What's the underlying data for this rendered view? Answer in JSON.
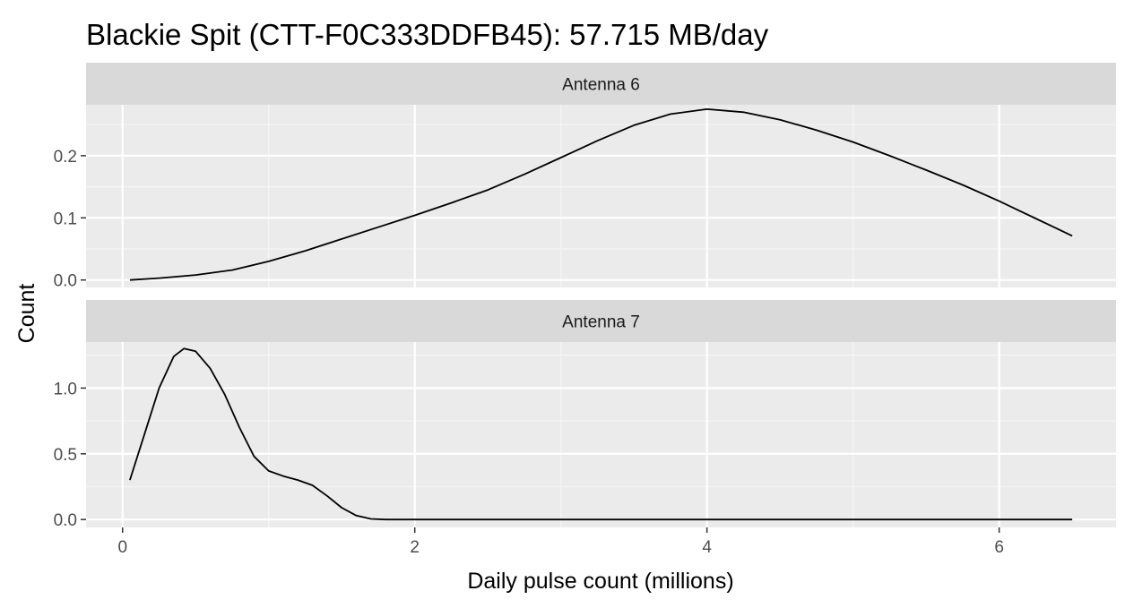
{
  "chart_data": {
    "type": "line",
    "title": "Blackie Spit (CTT-F0C333DDFB45): 57.715 MB/day",
    "xlabel": "Daily pulse count (millions)",
    "ylabel": "Count",
    "xlim": [
      -0.25,
      6.8
    ],
    "x_ticks": [
      0,
      2,
      4,
      6
    ],
    "x_tick_labels": [
      "0",
      "2",
      "4",
      "6"
    ],
    "grid": true,
    "panel_background": "#ebebeb",
    "strip_background": "#d9d9d9",
    "line_color": "#000000",
    "facets": [
      {
        "strip_label": "Antenna 6",
        "ylim": [
          -0.012,
          0.282
        ],
        "y_ticks": [
          0.0,
          0.1,
          0.2
        ],
        "y_tick_labels": [
          "0.0",
          "0.1",
          "0.2"
        ],
        "series": [
          {
            "x": [
              0.05,
              0.25,
              0.5,
              0.75,
              1.0,
              1.25,
              1.5,
              1.75,
              2.0,
              2.25,
              2.5,
              2.75,
              3.0,
              3.25,
              3.5,
              3.75,
              4.0,
              4.25,
              4.5,
              4.75,
              5.0,
              5.25,
              5.5,
              5.75,
              6.0,
              6.25,
              6.5
            ],
            "y": [
              0.0,
              0.003,
              0.008,
              0.016,
              0.03,
              0.047,
              0.066,
              0.085,
              0.104,
              0.124,
              0.145,
              0.17,
              0.197,
              0.224,
              0.249,
              0.267,
              0.275,
              0.27,
              0.258,
              0.241,
              0.222,
              0.2,
              0.177,
              0.153,
              0.127,
              0.099,
              0.071
            ]
          }
        ]
      },
      {
        "strip_label": "Antenna 7",
        "ylim": [
          -0.06,
          1.35
        ],
        "y_ticks": [
          0.0,
          0.5,
          1.0
        ],
        "y_tick_labels": [
          "0.0",
          "0.5",
          "1.0"
        ],
        "series": [
          {
            "x": [
              0.05,
              0.15,
              0.25,
              0.35,
              0.42,
              0.5,
              0.6,
              0.7,
              0.8,
              0.9,
              1.0,
              1.1,
              1.2,
              1.3,
              1.4,
              1.5,
              1.6,
              1.7,
              1.8,
              2.0,
              3.0,
              4.0,
              5.0,
              6.0,
              6.5
            ],
            "y": [
              0.3,
              0.65,
              1.0,
              1.24,
              1.3,
              1.28,
              1.15,
              0.95,
              0.7,
              0.48,
              0.37,
              0.33,
              0.3,
              0.26,
              0.18,
              0.09,
              0.03,
              0.005,
              0.0,
              0.0,
              0.0,
              0.0,
              0.0,
              0.0,
              0.0
            ]
          }
        ]
      }
    ]
  }
}
